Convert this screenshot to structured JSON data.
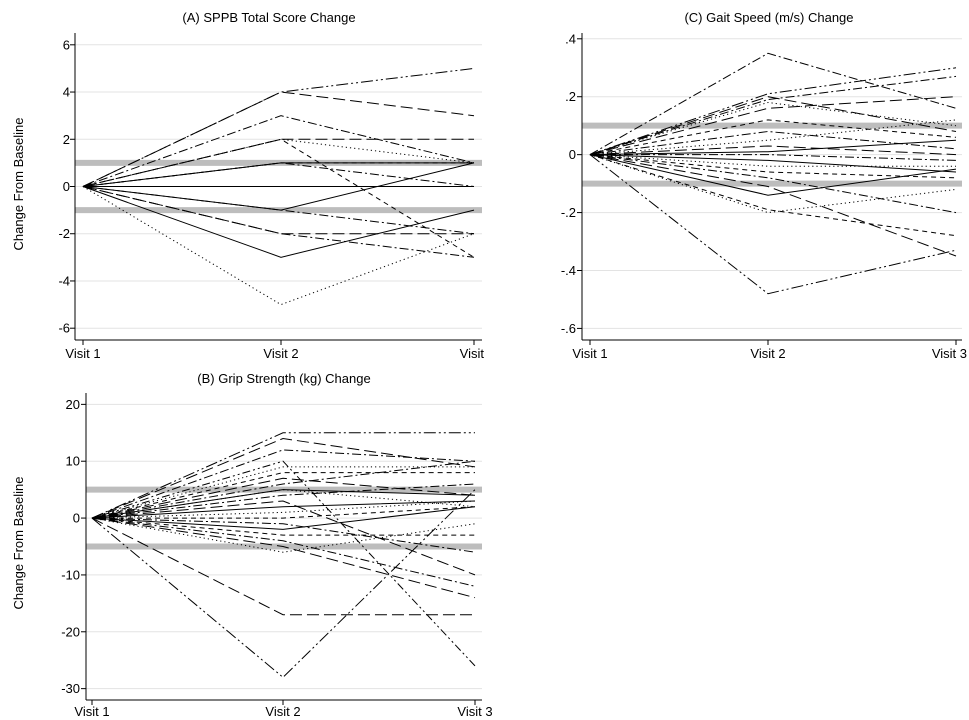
{
  "chart_data": [
    {
      "id": "A",
      "type": "line",
      "title": "(A) SPPB Total Score Change",
      "ylabel": "Change From Baseline",
      "xlabel": "",
      "categories": [
        "Visit 1",
        "Visit 2",
        "Visit"
      ],
      "ylim": [
        -6.5,
        6.5
      ],
      "yticks": [
        -6,
        -4,
        -2,
        0,
        2,
        4,
        6
      ],
      "ytick_labels": [
        "-6",
        "-4",
        "-2",
        "0",
        "2",
        "4",
        "6"
      ],
      "grid": true,
      "threshold_bands": [
        1,
        -1
      ],
      "series_colors": [
        "#000000"
      ],
      "band_color": "#bdbdbd",
      "series": [
        {
          "values": [
            0,
            4,
            5
          ],
          "dash": "longdash-dot2"
        },
        {
          "values": [
            0,
            4,
            3
          ],
          "dash": "longdash"
        },
        {
          "values": [
            0,
            3,
            1
          ],
          "dash": "dash-dot"
        },
        {
          "values": [
            0,
            2,
            2
          ],
          "dash": "longdash"
        },
        {
          "values": [
            0,
            2,
            1
          ],
          "dash": "dot"
        },
        {
          "values": [
            0,
            1,
            1
          ],
          "dash": "solid"
        },
        {
          "values": [
            0,
            1,
            1
          ],
          "dash": "shortdash"
        },
        {
          "values": [
            0,
            1,
            0
          ],
          "dash": "dash-dot"
        },
        {
          "values": [
            0,
            0,
            0
          ],
          "dash": "solid"
        },
        {
          "values": [
            0,
            0,
            0
          ],
          "dash": "dot"
        },
        {
          "values": [
            0,
            -1,
            1
          ],
          "dash": "solid"
        },
        {
          "values": [
            0,
            -1,
            -2
          ],
          "dash": "dash-dot"
        },
        {
          "values": [
            0,
            -2,
            -2
          ],
          "dash": "longdash"
        },
        {
          "values": [
            0,
            -2,
            -3
          ],
          "dash": "dash-dot"
        },
        {
          "values": [
            0,
            -3,
            -1
          ],
          "dash": "solid"
        },
        {
          "values": [
            0,
            -5,
            -2
          ],
          "dash": "dot"
        },
        {
          "values": [
            0,
            2,
            -3
          ],
          "dash": "shortdash"
        }
      ]
    },
    {
      "id": "B",
      "type": "line",
      "title": "(B) Grip Strength (kg) Change",
      "ylabel": "Change From Baseline",
      "xlabel": "",
      "categories": [
        "Visit 1",
        "Visit 2",
        "Visit 3"
      ],
      "ylim": [
        -32,
        22
      ],
      "yticks": [
        -30,
        -20,
        -10,
        0,
        10,
        20
      ],
      "ytick_labels": [
        "-30",
        "-20",
        "-10",
        "0",
        "10",
        "20"
      ],
      "grid": true,
      "threshold_bands": [
        5,
        -5
      ],
      "series_colors": [
        "#000000"
      ],
      "band_color": "#bdbdbd",
      "series": [
        {
          "values": [
            0,
            15,
            15
          ],
          "dash": "longdash-dot2"
        },
        {
          "values": [
            0,
            14,
            9
          ],
          "dash": "longdash"
        },
        {
          "values": [
            0,
            12,
            10
          ],
          "dash": "dash-dot"
        },
        {
          "values": [
            0,
            9,
            9
          ],
          "dash": "dot"
        },
        {
          "values": [
            0,
            8,
            8
          ],
          "dash": "shortdash"
        },
        {
          "values": [
            0,
            7,
            4
          ],
          "dash": "longdash"
        },
        {
          "values": [
            0,
            6,
            10
          ],
          "dash": "dash-dot"
        },
        {
          "values": [
            0,
            5,
            4
          ],
          "dash": "solid"
        },
        {
          "values": [
            0,
            5,
            2
          ],
          "dash": "dot"
        },
        {
          "values": [
            0,
            4,
            6
          ],
          "dash": "dash-dot"
        },
        {
          "values": [
            0,
            3,
            -10
          ],
          "dash": "longdash"
        },
        {
          "values": [
            0,
            2,
            3
          ],
          "dash": "solid"
        },
        {
          "values": [
            0,
            1,
            3
          ],
          "dash": "dot"
        },
        {
          "values": [
            0,
            0,
            2
          ],
          "dash": "shortdash"
        },
        {
          "values": [
            0,
            -1,
            -6
          ],
          "dash": "dash-dot"
        },
        {
          "values": [
            0,
            -2,
            2
          ],
          "dash": "solid"
        },
        {
          "values": [
            0,
            -3,
            -3
          ],
          "dash": "shortdash"
        },
        {
          "values": [
            0,
            -4,
            -12
          ],
          "dash": "dash-dot"
        },
        {
          "values": [
            0,
            -5,
            -14
          ],
          "dash": "longdash"
        },
        {
          "values": [
            0,
            -6,
            -1
          ],
          "dash": "dot"
        },
        {
          "values": [
            0,
            -17,
            -17
          ],
          "dash": "longdash"
        },
        {
          "values": [
            0,
            -28,
            5
          ],
          "dash": "longdash-dot2"
        },
        {
          "values": [
            0,
            10,
            -26
          ],
          "dash": "dot2dash"
        }
      ]
    },
    {
      "id": "C",
      "type": "line",
      "title": "(C) Gait Speed (m/s) Change",
      "ylabel": "",
      "xlabel": "",
      "categories": [
        "Visit 1",
        "Visit 2",
        "Visit 3"
      ],
      "ylim": [
        -0.64,
        0.42
      ],
      "yticks": [
        -0.6,
        -0.4,
        -0.2,
        0,
        0.2,
        0.4
      ],
      "ytick_labels": [
        "-.6",
        "-.4",
        "-.2",
        "0",
        ".2",
        ".4"
      ],
      "grid": true,
      "threshold_bands": [
        0.1,
        -0.1
      ],
      "series_colors": [
        "#000000"
      ],
      "band_color": "#bdbdbd",
      "series": [
        {
          "values": [
            0,
            0.35,
            0.16
          ],
          "dash": "dash-dot"
        },
        {
          "values": [
            0,
            0.21,
            0.3
          ],
          "dash": "longdash-dot2"
        },
        {
          "values": [
            0,
            0.2,
            0.08
          ],
          "dash": "longdash"
        },
        {
          "values": [
            0,
            0.19,
            0.27
          ],
          "dash": "dash-dot"
        },
        {
          "values": [
            0,
            0.18,
            0.1
          ],
          "dash": "dot"
        },
        {
          "values": [
            0,
            0.16,
            0.2
          ],
          "dash": "longdash"
        },
        {
          "values": [
            0,
            0.12,
            0.06
          ],
          "dash": "shortdash"
        },
        {
          "values": [
            0,
            0.08,
            0.02
          ],
          "dash": "dash-dot"
        },
        {
          "values": [
            0,
            0.05,
            0.12
          ],
          "dash": "dot"
        },
        {
          "values": [
            0,
            0.03,
            0.0
          ],
          "dash": "longdash"
        },
        {
          "values": [
            0,
            0.01,
            0.05
          ],
          "dash": "solid"
        },
        {
          "values": [
            0,
            0.0,
            -0.02
          ],
          "dash": "dash-dot"
        },
        {
          "values": [
            0,
            -0.02,
            -0.06
          ],
          "dash": "solid"
        },
        {
          "values": [
            0,
            -0.04,
            -0.04
          ],
          "dash": "dot"
        },
        {
          "values": [
            0,
            -0.06,
            -0.08
          ],
          "dash": "shortdash"
        },
        {
          "values": [
            0,
            -0.08,
            -0.2
          ],
          "dash": "dash-dot"
        },
        {
          "values": [
            0,
            -0.11,
            -0.35
          ],
          "dash": "longdash"
        },
        {
          "values": [
            0,
            -0.14,
            -0.05
          ],
          "dash": "solid"
        },
        {
          "values": [
            0,
            -0.19,
            -0.28
          ],
          "dash": "shortdash"
        },
        {
          "values": [
            0,
            -0.2,
            -0.12
          ],
          "dash": "dot"
        },
        {
          "values": [
            0,
            -0.48,
            -0.33
          ],
          "dash": "longdash-dot2"
        }
      ]
    }
  ]
}
